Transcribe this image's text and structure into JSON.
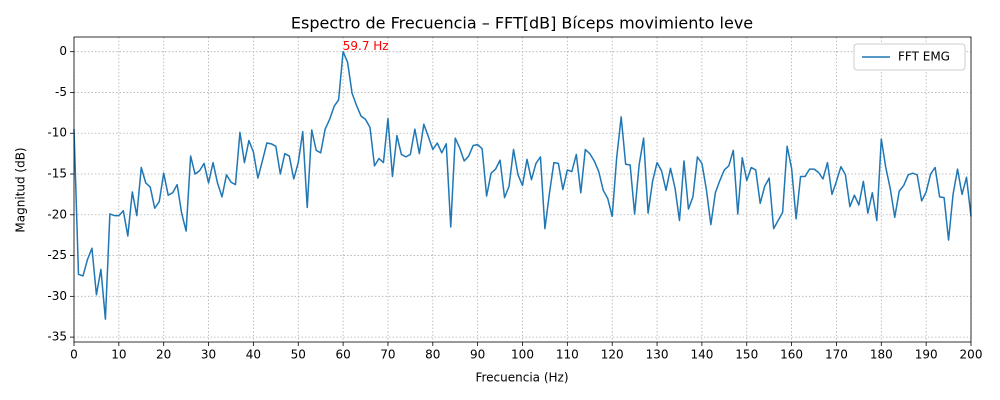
{
  "chart_data": {
    "type": "line",
    "title": "Espectro de Frecuencia – FFT[dB] Bíceps movimiento leve",
    "xlabel": "Frecuencia (Hz)",
    "ylabel": "Magnitud (dB)",
    "x": [
      0,
      1,
      2,
      3,
      4,
      5,
      6,
      7,
      8,
      9,
      10,
      11,
      12,
      13,
      14,
      15,
      16,
      17,
      18,
      19,
      20,
      21,
      22,
      23,
      24,
      25,
      26,
      27,
      28,
      29,
      30,
      31,
      32,
      33,
      34,
      35,
      36,
      37,
      38,
      39,
      40,
      41,
      42,
      43,
      44,
      45,
      46,
      47,
      48,
      49,
      50,
      51,
      52,
      53,
      54,
      55,
      56,
      57,
      58,
      59,
      60,
      61,
      62,
      63,
      64,
      65,
      66,
      67,
      68,
      69,
      70,
      71,
      72,
      73,
      74,
      75,
      76,
      77,
      78,
      79,
      80,
      81,
      82,
      83,
      84,
      85,
      86,
      87,
      88,
      89,
      90,
      91,
      92,
      93,
      94,
      95,
      96,
      97,
      98,
      99,
      100,
      101,
      102,
      103,
      104,
      105,
      106,
      107,
      108,
      109,
      110,
      111,
      112,
      113,
      114,
      115,
      116,
      117,
      118,
      119,
      120,
      121,
      122,
      123,
      124,
      125,
      126,
      127,
      128,
      129,
      130,
      131,
      132,
      133,
      134,
      135,
      136,
      137,
      138,
      139,
      140,
      141,
      142,
      143,
      144,
      145,
      146,
      147,
      148,
      149,
      150,
      151,
      152,
      153,
      154,
      155,
      156,
      157,
      158,
      159,
      160,
      161,
      162,
      163,
      164,
      165,
      166,
      167,
      168,
      169,
      170,
      171,
      172,
      173,
      174,
      175,
      176,
      177,
      178,
      179,
      180,
      181,
      182,
      183,
      184,
      185,
      186,
      187,
      188,
      189,
      190,
      191,
      192,
      193,
      194,
      195,
      196,
      197,
      198,
      199,
      200
    ],
    "series": [
      {
        "name": "FFT EMG",
        "color": "#1f77b4",
        "values": [
          -9.5,
          -27.3,
          -27.5,
          -25.5,
          -24.1,
          -29.8,
          -26.7,
          -32.8,
          -19.9,
          -20.1,
          -20.1,
          -19.5,
          -22.6,
          -17.2,
          -20.1,
          -14.2,
          -16.1,
          -16.6,
          -19.2,
          -18.4,
          -14.9,
          -17.6,
          -17.3,
          -16.3,
          -19.8,
          -22.0,
          -12.8,
          -15.0,
          -14.6,
          -13.7,
          -16.1,
          -13.6,
          -16.1,
          -17.8,
          -15.1,
          -16.0,
          -16.3,
          -9.9,
          -13.6,
          -10.9,
          -12.3,
          -15.5,
          -13.4,
          -11.2,
          -11.3,
          -11.6,
          -15.0,
          -12.5,
          -12.8,
          -15.6,
          -13.6,
          -9.8,
          -19.1,
          -9.6,
          -12.1,
          -12.4,
          -9.5,
          -8.3,
          -6.7,
          -5.9,
          0,
          -1.3,
          -5.1,
          -6.6,
          -7.9,
          -8.3,
          -9.3,
          -14.0,
          -13.1,
          -13.6,
          -8.2,
          -15.3,
          -10.3,
          -12.6,
          -12.9,
          -12.6,
          -9.5,
          -12.5,
          -8.9,
          -10.4,
          -12.0,
          -11.2,
          -12.4,
          -11.3,
          -21.5,
          -10.6,
          -11.8,
          -13.4,
          -12.8,
          -11.5,
          -11.4,
          -11.9,
          -17.7,
          -14.9,
          -14.4,
          -13.3,
          -17.9,
          -16.5,
          -12.0,
          -15.1,
          -16.4,
          -13.2,
          -15.7,
          -13.7,
          -12.9,
          -21.7,
          -17.4,
          -13.6,
          -13.7,
          -16.9,
          -14.5,
          -14.7,
          -12.6,
          -17.3,
          -12.0,
          -12.5,
          -13.4,
          -14.7,
          -17.0,
          -18.0,
          -20.2,
          -13.0,
          -8.0,
          -13.8,
          -13.9,
          -19.9,
          -13.9,
          -10.6,
          -19.8,
          -15.9,
          -13.6,
          -14.6,
          -17.0,
          -14.3,
          -16.7,
          -20.7,
          -13.4,
          -19.3,
          -17.8,
          -12.9,
          -13.7,
          -16.9,
          -21.2,
          -17.3,
          -15.8,
          -14.5,
          -14.0,
          -12.1,
          -19.9,
          -13.0,
          -15.8,
          -14.2,
          -14.5,
          -18.6,
          -16.5,
          -15.5,
          -21.7,
          -20.7,
          -19.7,
          -11.6,
          -14.3,
          -20.5,
          -15.3,
          -15.3,
          -14.4,
          -14.4,
          -14.8,
          -15.6,
          -13.6,
          -17.5,
          -15.9,
          -14.1,
          -15.1,
          -19.0,
          -17.6,
          -18.8,
          -15.9,
          -19.8,
          -17.3,
          -20.7,
          -10.7,
          -14.2,
          -16.8,
          -20.3,
          -17.1,
          -16.4,
          -15.1,
          -14.9,
          -15.1,
          -18.3,
          -17.2,
          -15.0,
          -14.2,
          -17.8,
          -17.9,
          -23.1,
          -17.5,
          -14.4,
          -17.5,
          -15.4,
          -20.2
        ]
      }
    ],
    "xlim": [
      0,
      200
    ],
    "ylim": [
      -35.6,
      1.8
    ],
    "xticks": [
      0,
      10,
      20,
      30,
      40,
      50,
      60,
      70,
      80,
      90,
      100,
      110,
      120,
      130,
      140,
      150,
      160,
      170,
      180,
      190,
      200
    ],
    "yticks": [
      -35,
      -30,
      -25,
      -20,
      -15,
      -10,
      -5,
      0
    ],
    "grid": true,
    "legend": "upper right",
    "annotation": {
      "text": "59.7 Hz",
      "x": 59.7,
      "y": 0,
      "color": "#ff0000"
    }
  }
}
